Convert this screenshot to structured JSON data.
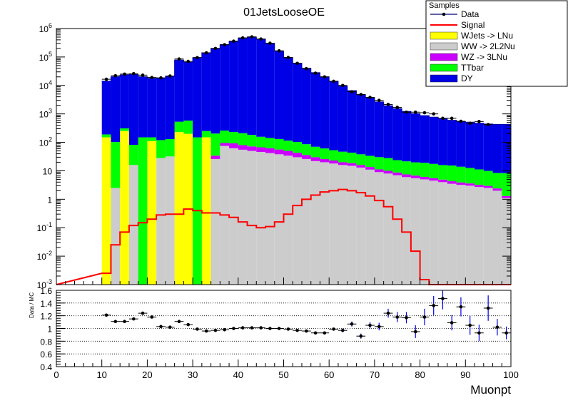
{
  "chart_data": [
    {
      "type": "bar",
      "title": "01JetsLooseOE",
      "xlabel": "Muonpt",
      "ylabel": "",
      "xlim": [
        0,
        100
      ],
      "ylim": [
        0.001,
        1000000
      ],
      "yscale": "log",
      "bin_width": 2,
      "stacked": true,
      "x_tick_labels": [
        "0",
        "10",
        "20",
        "30",
        "40",
        "50",
        "60",
        "70",
        "80",
        "90",
        "100"
      ],
      "y_tick_labels": [
        {
          "base": "10",
          "exp": "-3"
        },
        {
          "base": "10",
          "exp": "-2"
        },
        {
          "base": "10",
          "exp": "-1"
        },
        {
          "base": "1",
          "exp": ""
        },
        {
          "base": "10",
          "exp": ""
        },
        {
          "base": "10",
          "exp": "2"
        },
        {
          "base": "10",
          "exp": "3"
        },
        {
          "base": "10",
          "exp": "4"
        },
        {
          "base": "10",
          "exp": "5"
        },
        {
          "base": "10",
          "exp": "6"
        }
      ],
      "legend": {
        "title": "Samples",
        "placement": "top-right",
        "entries": [
          {
            "label": "Data",
            "style": "marker",
            "color": "#000000"
          },
          {
            "label": "Signal",
            "style": "line",
            "color": "#ff0000"
          },
          {
            "label": "WJets -> LNu",
            "style": "fill",
            "color": "#ffff00"
          },
          {
            "label": "WW -> 2L2Nu",
            "style": "fill",
            "color": "#cccccc"
          },
          {
            "label": "WZ -> 3LNu",
            "style": "fill",
            "color": "#cc00ff"
          },
          {
            "label": "TTbar",
            "style": "fill",
            "color": "#00ff00"
          },
          {
            "label": "DY",
            "style": "fill",
            "color": "#0000e6"
          }
        ]
      },
      "series": [
        {
          "name": "WJets -> LNu",
          "color": "#ffff00",
          "x": [
            11,
            15,
            21,
            27,
            29,
            33
          ],
          "values": [
            150,
            250,
            110,
            230,
            200,
            150
          ]
        },
        {
          "name": "WW -> 2L2Nu",
          "color": "#cccccc",
          "x": [
            11,
            13,
            15,
            17,
            19,
            21,
            23,
            25,
            27,
            29,
            31,
            33,
            35,
            37,
            39,
            41,
            43,
            45,
            47,
            49,
            51,
            53,
            55,
            57,
            59,
            61,
            63,
            65,
            67,
            69,
            71,
            73,
            75,
            77,
            79,
            81,
            83,
            85,
            87,
            89,
            91,
            93,
            95,
            97,
            99
          ],
          "values": [
            0.001,
            2.5,
            0.001,
            16,
            0.001,
            0.001,
            28,
            32,
            0.001,
            0.001,
            0.001,
            0.001,
            26,
            75,
            62,
            55,
            50,
            46,
            42,
            38,
            34,
            30,
            26,
            22,
            20,
            18,
            16,
            15,
            13,
            11,
            9,
            8,
            7,
            6,
            5.5,
            5,
            4.5,
            4,
            3.5,
            3.2,
            3,
            2.7,
            2.5,
            2,
            1.1
          ]
        },
        {
          "name": "WZ -> 3LNu",
          "color": "#cc00ff",
          "x": [
            35,
            37,
            39,
            41,
            43,
            45,
            47,
            49,
            51,
            53,
            55,
            57,
            59,
            61,
            63,
            65,
            67,
            69,
            71,
            73,
            75,
            77,
            79,
            81,
            83,
            85,
            87,
            89,
            91,
            93,
            95,
            97,
            99
          ],
          "values": [
            8,
            20,
            30,
            25,
            22,
            21,
            20,
            18,
            16,
            13,
            10,
            8,
            6,
            5,
            4,
            3.5,
            3,
            2.6,
            2.2,
            2,
            1.7,
            1.5,
            1.3,
            1.1,
            1,
            0.9,
            0.8,
            0.7,
            0.6,
            0.5,
            0.45,
            0.4,
            0.2
          ]
        },
        {
          "name": "TTbar",
          "color": "#00ff00",
          "x": [
            11,
            13,
            15,
            17,
            19,
            21,
            23,
            25,
            27,
            29,
            31,
            33,
            35,
            37,
            39,
            41,
            43,
            45,
            47,
            49,
            51,
            53,
            55,
            57,
            59,
            61,
            63,
            65,
            67,
            69,
            71,
            73,
            75,
            77,
            79,
            81,
            83,
            85,
            87,
            89,
            91,
            93,
            95,
            97,
            99
          ],
          "values": [
            40,
            100,
            60,
            66,
            150,
            40,
            92,
            98,
            300,
            380,
            150,
            100,
            170,
            165,
            140,
            130,
            110,
            90,
            80,
            75,
            65,
            60,
            50,
            40,
            35,
            30,
            27,
            25,
            22,
            20,
            19,
            18,
            15,
            14,
            13,
            13,
            12,
            11,
            11,
            10,
            9,
            8,
            7,
            6,
            7
          ]
        },
        {
          "name": "DY",
          "color": "#0000e6",
          "x": [
            11,
            13,
            15,
            17,
            19,
            21,
            23,
            25,
            27,
            29,
            31,
            33,
            35,
            37,
            39,
            41,
            43,
            45,
            47,
            49,
            51,
            53,
            55,
            57,
            59,
            61,
            63,
            65,
            67,
            69,
            71,
            73,
            75,
            77,
            79,
            81,
            83,
            85,
            87,
            89,
            91,
            93,
            95,
            97,
            99
          ],
          "values": [
            14000,
            20000,
            23000,
            24000,
            20000,
            17500,
            18000,
            21000,
            78000,
            65000,
            95000,
            140000,
            200000,
            270000,
            350000,
            460000,
            500000,
            420000,
            300000,
            160000,
            95000,
            60000,
            40000,
            28000,
            20000,
            14000,
            9500,
            6500,
            4700,
            3700,
            2600,
            1900,
            1500,
            1200,
            1000,
            850,
            750,
            680,
            580,
            520,
            500,
            460,
            430,
            420,
            420
          ]
        }
      ],
      "data_points": {
        "name": "Data",
        "x": [
          11,
          13,
          15,
          17,
          19,
          21,
          23,
          25,
          27,
          29,
          31,
          33,
          35,
          37,
          39,
          41,
          43,
          45,
          47,
          49,
          51,
          53,
          55,
          57,
          59,
          61,
          63,
          65,
          67,
          69,
          71,
          73,
          75,
          77,
          79,
          81,
          83,
          85,
          87,
          89,
          91,
          93,
          95
        ],
        "values": [
          16500,
          22000,
          25000,
          26000,
          23000,
          19000,
          18500,
          21500,
          85000,
          70000,
          95000,
          140000,
          200000,
          270000,
          360000,
          470000,
          510000,
          430000,
          305000,
          165000,
          96000,
          60000,
          39000,
          27000,
          20000,
          14000,
          10000,
          6000,
          4800,
          3800,
          3000,
          2150,
          1700,
          1150,
          1150,
          1100,
          1000,
          700,
          700,
          550,
          470,
          540,
          420
        ]
      },
      "signal": {
        "name": "Signal",
        "x": [
          11,
          13,
          15,
          17,
          19,
          21,
          23,
          25,
          27,
          29,
          31,
          33,
          35,
          37,
          39,
          41,
          43,
          45,
          47,
          49,
          51,
          53,
          55,
          57,
          59,
          61,
          63,
          65,
          67,
          69,
          71,
          73,
          75,
          77,
          79,
          81,
          83,
          85,
          87,
          89,
          91,
          93,
          95,
          97,
          99
        ],
        "values": [
          0.0025,
          0.025,
          0.07,
          0.12,
          0.15,
          0.2,
          0.28,
          0.3,
          0.3,
          0.45,
          0.4,
          0.33,
          0.33,
          0.28,
          0.23,
          0.16,
          0.12,
          0.1,
          0.11,
          0.16,
          0.3,
          0.6,
          1,
          1.4,
          1.8,
          2,
          2.2,
          2,
          1.7,
          1.3,
          0.9,
          0.55,
          0.2,
          0.07,
          0.015,
          0.0015,
          0.001,
          0.001,
          0.001,
          0.001,
          0.001,
          0.001,
          0.001,
          0.001,
          0.001
        ]
      }
    },
    {
      "type": "scatter",
      "xlabel": "Muonpt",
      "ylabel": "Data / MC",
      "xlim": [
        0,
        100
      ],
      "ylim": [
        0.4,
        1.6
      ],
      "grid_y": true,
      "x_tick_labels": [
        "0",
        "10",
        "20",
        "30",
        "40",
        "50",
        "60",
        "70",
        "80",
        "90",
        "100"
      ],
      "y_tick_labels": [
        "0.4",
        "0.6",
        "0.8",
        "1",
        "1.2",
        "1.4",
        "1.6"
      ],
      "y_grid_values": [
        0.6,
        0.8,
        1,
        1.2,
        1.4
      ],
      "points": {
        "x": [
          11,
          13,
          15,
          17,
          19,
          21,
          23,
          25,
          27,
          29,
          31,
          33,
          35,
          37,
          39,
          41,
          43,
          45,
          47,
          49,
          51,
          53,
          55,
          57,
          59,
          61,
          63,
          65,
          67,
          69,
          71,
          73,
          75,
          77,
          79,
          81,
          83,
          85,
          87,
          89,
          91,
          93,
          95,
          97,
          99
        ],
        "y": [
          1.21,
          1.11,
          1.11,
          1.15,
          1.24,
          1.18,
          1.03,
          1.02,
          1.11,
          1.06,
          0.99,
          0.96,
          0.97,
          0.98,
          1.0,
          1.01,
          1.01,
          1.01,
          1.0,
          1.0,
          0.99,
          0.97,
          0.96,
          0.93,
          0.93,
          0.99,
          0.97,
          1.07,
          0.88,
          1.05,
          1.03,
          1.24,
          1.18,
          1.17,
          0.95,
          1.18,
          1.36,
          1.47,
          1.09,
          1.34,
          1.05,
          0.93,
          1.32,
          1.02,
          0.93
        ],
        "err": [
          0.02,
          0.02,
          0.02,
          0.02,
          0.02,
          0.02,
          0.02,
          0.02,
          0.015,
          0.015,
          0.015,
          0.01,
          0.01,
          0.01,
          0.01,
          0.01,
          0.01,
          0.01,
          0.01,
          0.01,
          0.01,
          0.01,
          0.01,
          0.015,
          0.015,
          0.02,
          0.03,
          0.04,
          0.04,
          0.05,
          0.06,
          0.07,
          0.08,
          0.09,
          0.1,
          0.13,
          0.15,
          0.17,
          0.12,
          0.15,
          0.15,
          0.13,
          0.2,
          0.13,
          0.1
        ]
      }
    }
  ]
}
